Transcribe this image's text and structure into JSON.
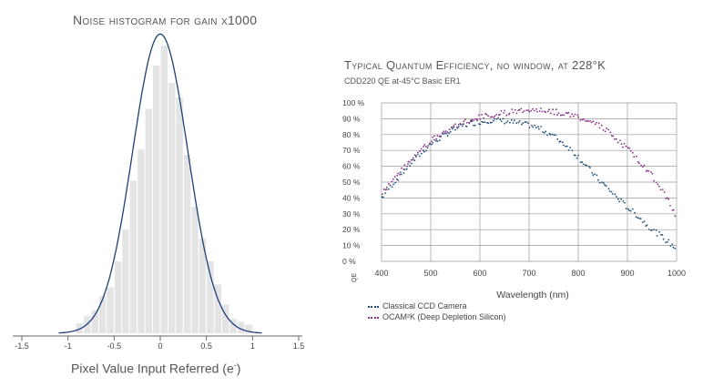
{
  "chart_data": [
    {
      "type": "bar",
      "title": "Noise histogram for gain x1000",
      "xlabel": "Pixel Value Input Referred (e",
      "xlabel_sup": "-",
      "xlim": [
        -1.5,
        1.5
      ],
      "xticks": [
        "-1.5",
        "-1",
        "-0.5",
        "0",
        "0.5",
        "1",
        "1.5"
      ],
      "xtick_values": [
        -1.5,
        -1,
        -0.5,
        0,
        0.5,
        1,
        1.5
      ],
      "bin_width": 0.083,
      "bins": [
        {
          "x": -0.875,
          "value": 0.035
        },
        {
          "x": -0.792,
          "value": 0.06
        },
        {
          "x": -0.708,
          "value": 0.08
        },
        {
          "x": -0.625,
          "value": 0.13
        },
        {
          "x": -0.542,
          "value": 0.16
        },
        {
          "x": -0.458,
          "value": 0.25
        },
        {
          "x": -0.375,
          "value": 0.36
        },
        {
          "x": -0.292,
          "value": 0.53
        },
        {
          "x": -0.208,
          "value": 0.64
        },
        {
          "x": -0.125,
          "value": 0.78
        },
        {
          "x": -0.042,
          "value": 0.93
        },
        {
          "x": 0.042,
          "value": 1.0
        },
        {
          "x": 0.125,
          "value": 0.87
        },
        {
          "x": 0.208,
          "value": 0.82
        },
        {
          "x": 0.292,
          "value": 0.62
        },
        {
          "x": 0.375,
          "value": 0.44
        },
        {
          "x": 0.458,
          "value": 0.33
        },
        {
          "x": 0.542,
          "value": 0.25
        },
        {
          "x": 0.625,
          "value": 0.17
        },
        {
          "x": 0.708,
          "value": 0.1
        },
        {
          "x": 0.792,
          "value": 0.05
        },
        {
          "x": 0.875,
          "value": 0.04
        },
        {
          "x": 0.958,
          "value": 0.03
        }
      ],
      "fit": {
        "type": "gaussian",
        "mean": 0.0,
        "sigma": 0.3,
        "peak": 1.04
      },
      "colors": {
        "bars": "#e4e4e4",
        "fit": "#1f3f7a",
        "axis": "#666666"
      }
    },
    {
      "type": "scatter",
      "title": "Typical Quantum Efficiency, no window, at 228°K",
      "subtitle": "CDD220 QE at-45°C Basic ER1",
      "xlabel": "Wavelength (nm)",
      "ylabel": "QE",
      "xlim": [
        400,
        1000
      ],
      "ylim": [
        0,
        100
      ],
      "xticks": [
        400,
        500,
        600,
        700,
        800,
        900,
        1000
      ],
      "yticks": [
        0,
        10,
        20,
        30,
        40,
        50,
        60,
        70,
        80,
        90,
        100
      ],
      "ytick_labels": [
        "0 %",
        "10 %",
        "20 %",
        "30 %",
        "40 %",
        "50 %",
        "60 %",
        "70 %",
        "80 %",
        "90 %",
        "100 %"
      ],
      "grid": true,
      "legend": "bottom-left",
      "series": [
        {
          "name": "Classical CCD Camera",
          "color": "#1f4f78",
          "x": [
            400,
            420,
            440,
            460,
            480,
            500,
            520,
            540,
            560,
            580,
            600,
            620,
            640,
            660,
            680,
            700,
            720,
            740,
            760,
            780,
            800,
            820,
            840,
            860,
            880,
            900,
            920,
            940,
            960,
            980,
            1000
          ],
          "y": [
            40,
            48,
            55,
            62,
            68,
            74,
            78,
            82,
            85,
            87,
            88,
            89,
            89,
            88,
            87,
            86,
            84,
            81,
            77,
            72,
            66,
            59,
            52,
            46,
            40,
            34,
            29,
            23,
            18,
            13,
            8
          ]
        },
        {
          "name": "OCAM²K (Deep Depletion Silicon)",
          "color": "#8a2f88",
          "x": [
            400,
            420,
            440,
            460,
            480,
            500,
            520,
            540,
            560,
            580,
            600,
            620,
            640,
            660,
            680,
            700,
            720,
            740,
            760,
            780,
            800,
            820,
            840,
            860,
            880,
            900,
            920,
            940,
            960,
            980,
            1000
          ],
          "y": [
            42,
            50,
            57,
            64,
            70,
            76,
            80,
            84,
            87,
            89,
            91,
            92,
            93,
            94,
            95,
            96,
            96,
            95,
            94,
            93,
            91,
            89,
            86,
            82,
            77,
            71,
            65,
            58,
            50,
            40,
            27
          ]
        }
      ]
    }
  ]
}
